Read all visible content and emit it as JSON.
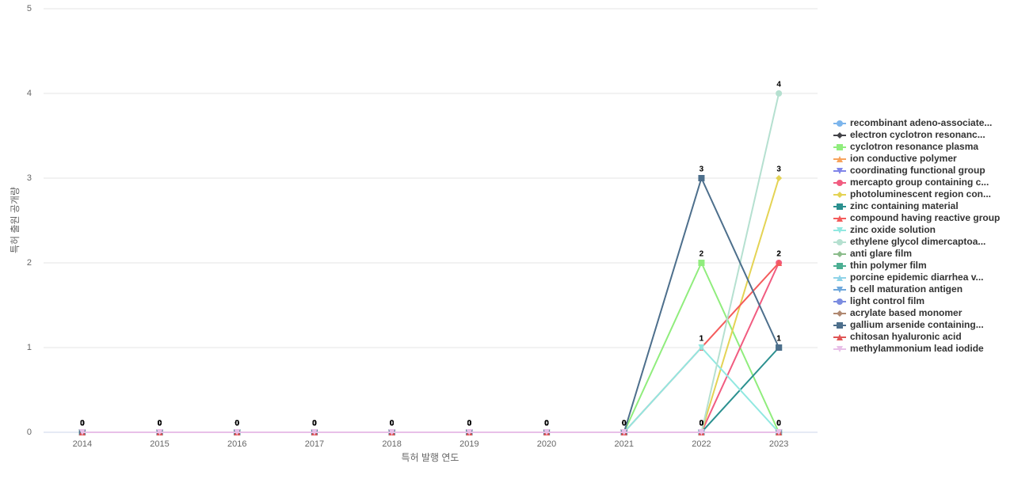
{
  "chart_data": {
    "type": "line",
    "x_label": "특허 발행 연도",
    "y_label": "특허 출원 공개량",
    "categories": [
      "2014",
      "2015",
      "2016",
      "2017",
      "2018",
      "2019",
      "2020",
      "2021",
      "2022",
      "2023"
    ],
    "ylim": [
      0,
      5
    ],
    "yticks": [
      0,
      1,
      2,
      3,
      4,
      5
    ],
    "grid": true,
    "series": [
      {
        "name": "recombinant adeno-associate...",
        "color": "#7cb5ec",
        "marker": "circle",
        "values": [
          0,
          0,
          0,
          0,
          0,
          0,
          0,
          0,
          0,
          0
        ]
      },
      {
        "name": "electron cyclotron resonanc...",
        "color": "#434348",
        "marker": "diamond",
        "values": [
          0,
          0,
          0,
          0,
          0,
          0,
          0,
          0,
          0,
          0
        ]
      },
      {
        "name": "cyclotron resonance plasma",
        "color": "#90ed7d",
        "marker": "square",
        "values": [
          0,
          0,
          0,
          0,
          0,
          0,
          0,
          0,
          2,
          0
        ]
      },
      {
        "name": "ion conductive polymer",
        "color": "#f7a35c",
        "marker": "triangle",
        "values": [
          0,
          0,
          0,
          0,
          0,
          0,
          0,
          0,
          0,
          0
        ]
      },
      {
        "name": "coordinating functional group",
        "color": "#8085e9",
        "marker": "triangle-down",
        "values": [
          0,
          0,
          0,
          0,
          0,
          0,
          0,
          0,
          0,
          0
        ]
      },
      {
        "name": "mercapto group containing c...",
        "color": "#f15c80",
        "marker": "circle",
        "values": [
          0,
          0,
          0,
          0,
          0,
          0,
          0,
          0,
          0,
          2
        ]
      },
      {
        "name": "photoluminescent region con...",
        "color": "#e4d354",
        "marker": "diamond",
        "values": [
          0,
          0,
          0,
          0,
          0,
          0,
          0,
          0,
          0,
          3
        ]
      },
      {
        "name": "zinc containing material",
        "color": "#2b908f",
        "marker": "square",
        "values": [
          0,
          0,
          0,
          0,
          0,
          0,
          0,
          0,
          0,
          1
        ]
      },
      {
        "name": "compound having reactive group",
        "color": "#f45b5b",
        "marker": "triangle",
        "values": [
          0,
          0,
          0,
          0,
          0,
          0,
          0,
          0,
          1,
          2
        ]
      },
      {
        "name": "zinc oxide solution",
        "color": "#91e8e1",
        "marker": "triangle-down",
        "values": [
          0,
          0,
          0,
          0,
          0,
          0,
          0,
          0,
          1,
          0
        ]
      },
      {
        "name": "ethylene glycol dimercaptoa...",
        "color": "#b5e0d0",
        "marker": "circle",
        "values": [
          0,
          0,
          0,
          0,
          0,
          0,
          0,
          0,
          0,
          4
        ]
      },
      {
        "name": "anti glare film",
        "color": "#8bbc8b",
        "marker": "diamond",
        "values": [
          0,
          0,
          0,
          0,
          0,
          0,
          0,
          0,
          0,
          0
        ]
      },
      {
        "name": "thin polymer film",
        "color": "#4caf93",
        "marker": "square",
        "values": [
          0,
          0,
          0,
          0,
          0,
          0,
          0,
          0,
          0,
          0
        ]
      },
      {
        "name": "porcine epidemic diarrhea v...",
        "color": "#8fd3e8",
        "marker": "triangle",
        "values": [
          0,
          0,
          0,
          0,
          0,
          0,
          0,
          0,
          0,
          0
        ]
      },
      {
        "name": "b cell maturation antigen",
        "color": "#6fa8dc",
        "marker": "triangle-down",
        "values": [
          0,
          0,
          0,
          0,
          0,
          0,
          0,
          0,
          0,
          0
        ]
      },
      {
        "name": "light control film",
        "color": "#7b8ce0",
        "marker": "circle",
        "values": [
          0,
          0,
          0,
          0,
          0,
          0,
          0,
          0,
          0,
          0
        ]
      },
      {
        "name": "acrylate based monomer",
        "color": "#b08870",
        "marker": "diamond",
        "values": [
          0,
          0,
          0,
          0,
          0,
          0,
          0,
          0,
          0,
          0
        ]
      },
      {
        "name": "gallium arsenide containing...",
        "color": "#4d6f8c",
        "marker": "square",
        "values": [
          0,
          0,
          0,
          0,
          0,
          0,
          0,
          0,
          3,
          1
        ]
      },
      {
        "name": "chitosan hyaluronic acid",
        "color": "#e05555",
        "marker": "triangle",
        "values": [
          0,
          0,
          0,
          0,
          0,
          0,
          0,
          0,
          0,
          0
        ]
      },
      {
        "name": "methylammonium lead iodide",
        "color": "#e8c0e8",
        "marker": "triangle-down",
        "values": [
          0,
          0,
          0,
          0,
          0,
          0,
          0,
          0,
          0,
          0
        ]
      }
    ]
  }
}
